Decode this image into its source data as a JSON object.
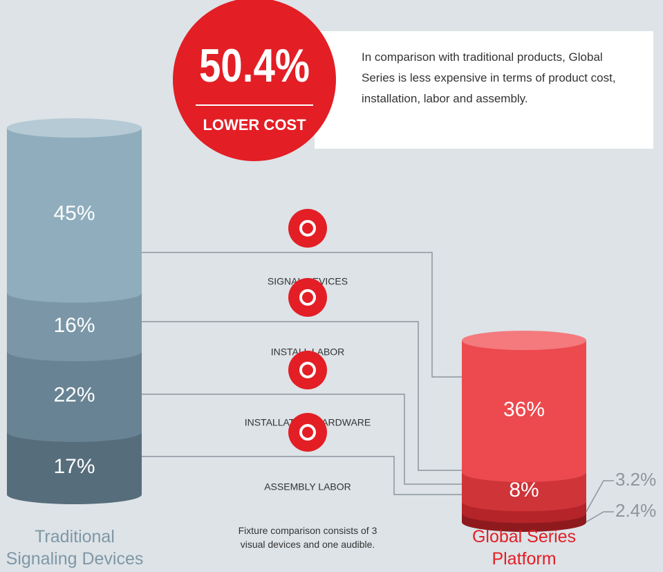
{
  "chart_data": {
    "type": "stacked_cylinder",
    "categories": [
      "Traditional Signaling Devices",
      "Global Series Platform"
    ],
    "series": [
      {
        "name": "SIGNAL DEVICES",
        "colors": [
          "#8fadbd",
          "#ec4a4f"
        ],
        "values": [
          45,
          36
        ],
        "value_labels": [
          "45%",
          "36%"
        ]
      },
      {
        "name": "INSTALL LABOR",
        "colors": [
          "#7b97a7",
          "#cf3439"
        ],
        "values": [
          16,
          8
        ],
        "value_labels": [
          "16%",
          "8%"
        ]
      },
      {
        "name": "INSTALLATION HARDWARE",
        "colors": [
          "#688393",
          "#b42428"
        ],
        "values": [
          22,
          3.2
        ],
        "value_labels": [
          "22%",
          "3.2%"
        ]
      },
      {
        "name": "ASSEMBLY LABOR",
        "colors": [
          "#566d7c",
          "#8e1a1e"
        ],
        "values": [
          17,
          2.4
        ],
        "value_labels": [
          "17%",
          "2.4%"
        ]
      }
    ],
    "callout": {
      "figure": "50.4%",
      "text": "LOWER COST"
    },
    "description": "In comparison with traditional products, Global Series is less expensive in terms of product cost, installation, labor and assembly.",
    "footnote": "Fixture comparison consists of 3 visual devices and one audible."
  }
}
